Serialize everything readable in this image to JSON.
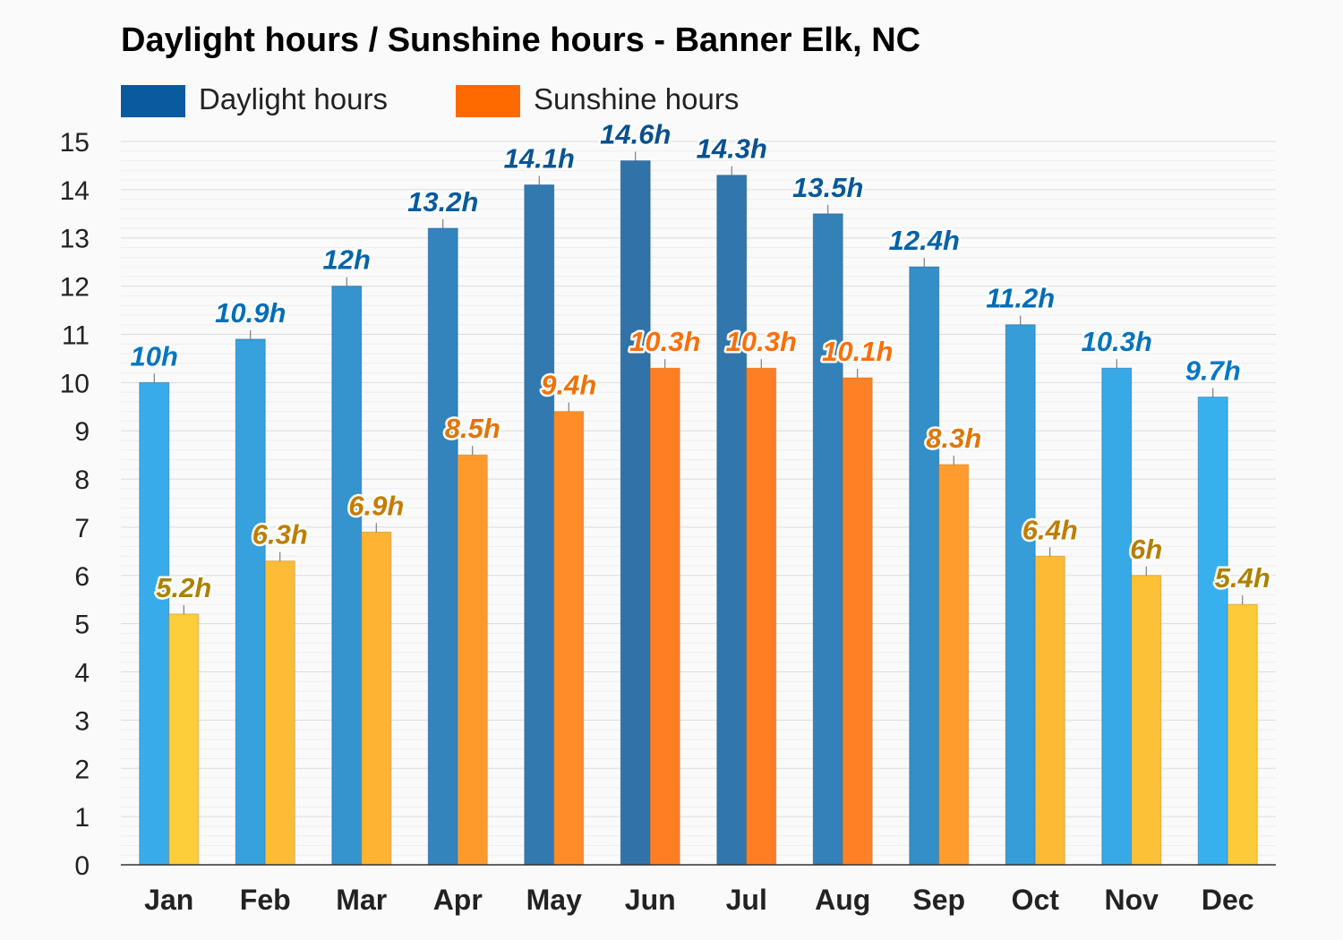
{
  "chart_data": {
    "type": "bar",
    "title": "Daylight hours / Sunshine hours - Banner Elk, NC",
    "categories": [
      "Jan",
      "Feb",
      "Mar",
      "Apr",
      "May",
      "Jun",
      "Jul",
      "Aug",
      "Sep",
      "Oct",
      "Nov",
      "Dec"
    ],
    "series": [
      {
        "name": "Daylight hours",
        "legend_color": "#0a5aa0",
        "values": [
          10,
          10.9,
          12,
          13.2,
          14.1,
          14.6,
          14.3,
          13.5,
          12.4,
          11.2,
          10.3,
          9.7
        ],
        "labels": [
          "10h",
          "10.9h",
          "12h",
          "13.2h",
          "14.1h",
          "14.6h",
          "14.3h",
          "13.5h",
          "12.4h",
          "11.2h",
          "10.3h",
          "9.7h"
        ]
      },
      {
        "name": "Sunshine hours",
        "legend_color": "#ff6a00",
        "values": [
          5.2,
          6.3,
          6.9,
          8.5,
          9.4,
          10.3,
          10.3,
          10.1,
          8.3,
          6.4,
          6,
          5.4
        ],
        "labels": [
          "5.2h",
          "6.3h",
          "6.9h",
          "8.5h",
          "9.4h",
          "10.3h",
          "10.3h",
          "10.1h",
          "8.3h",
          "6.4h",
          "6h",
          "5.4h"
        ]
      }
    ],
    "ylim": [
      0,
      15
    ],
    "yticks": [
      "0",
      "1",
      "2",
      "3",
      "4",
      "5",
      "6",
      "7",
      "8",
      "9",
      "10",
      "11",
      "12",
      "13",
      "14",
      "15"
    ],
    "xlabel": "",
    "ylabel": "",
    "grid": true,
    "legend_position": "top-left"
  }
}
